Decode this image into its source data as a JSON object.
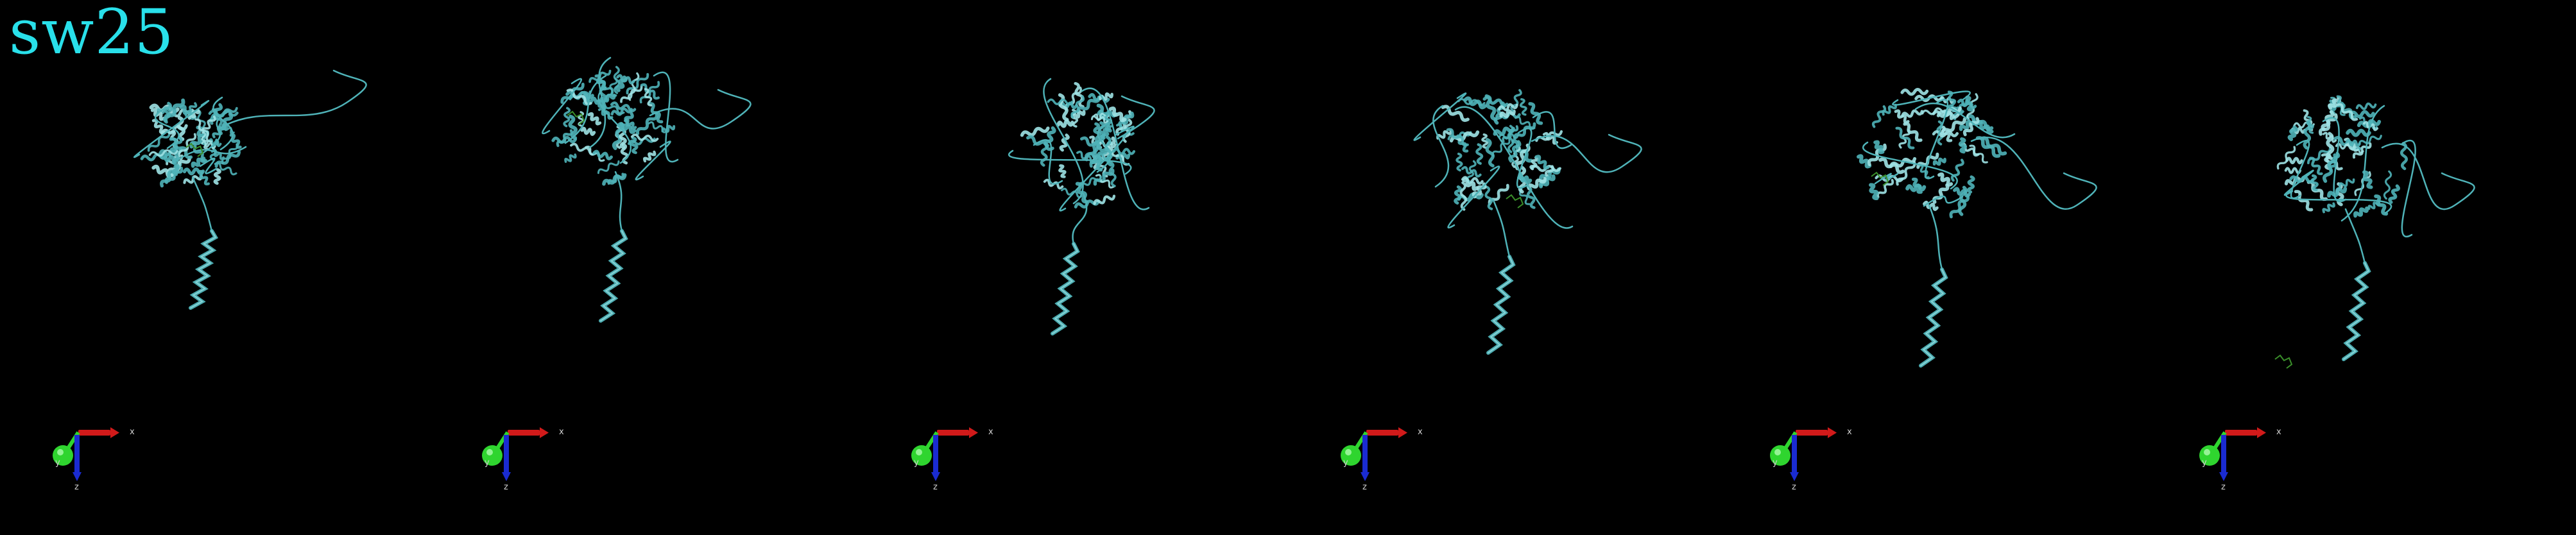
{
  "title": "sw25",
  "colors": {
    "background": "#000000",
    "title": "#29e0ea",
    "protein": "#4fb3b8",
    "protein_highlight": "#9fe3e6",
    "ligand": "#3a8f2a",
    "axis_x": "#d11a1a",
    "axis_y": "#2fd52f",
    "axis_z": "#1a2bd1"
  },
  "panels": [
    {
      "name": "frame-1",
      "axis_labels": {
        "x": "x",
        "y": "y",
        "z": "z"
      }
    },
    {
      "name": "frame-2",
      "axis_labels": {
        "x": "x",
        "y": "y",
        "z": "z"
      }
    },
    {
      "name": "frame-3",
      "axis_labels": {
        "x": "x",
        "y": "y",
        "z": "z"
      }
    },
    {
      "name": "frame-4",
      "axis_labels": {
        "x": "x",
        "y": "y",
        "z": "z"
      }
    },
    {
      "name": "frame-5",
      "axis_labels": {
        "x": "x",
        "y": "y",
        "z": "z"
      }
    },
    {
      "name": "frame-6",
      "axis_labels": {
        "x": "x",
        "y": "y",
        "z": "z"
      }
    }
  ]
}
